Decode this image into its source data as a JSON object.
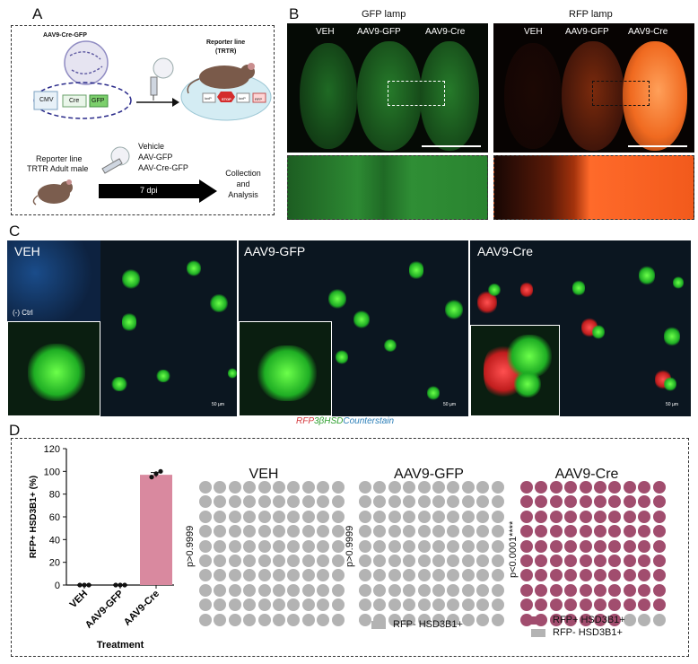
{
  "panels": {
    "a": "A",
    "b": "B",
    "c": "C",
    "d": "D"
  },
  "schematic": {
    "vector": "AAV9-Cre-GFP",
    "reporter_line": "Reporter line",
    "reporter_code": "(TRTR)",
    "cmv": "CMV",
    "cre": "Cre",
    "gfp": "GFP",
    "loxp1": "loxP",
    "stop": "STOP",
    "loxp2": "loxP",
    "rfp": "RFP",
    "subject_line1": "Reporter line",
    "subject_line2": "TRTR Adult male",
    "treatments": [
      "Vehicle",
      "AAV-GFP",
      "AAV-Cre-GFP"
    ],
    "timeline": "7 dpi",
    "outcome": "Collection\nand\nAnalysis"
  },
  "imaging": {
    "lamp_gfp": "GFP lamp",
    "lamp_rfp": "RFP lamp",
    "groups": [
      "VEH",
      "AAV9-GFP",
      "AAV9-Cre"
    ]
  },
  "micrographs": {
    "titles": [
      "VEH",
      "AAV9-GFP",
      "AAV9-Cre"
    ],
    "neg_ctrl": "(-) Ctrl",
    "scale": "50 µm",
    "stain_rfp": "RFP",
    "stain_hsd": "3βHSD",
    "stain_counter": "Counterstain",
    "colors": {
      "rfp": "#d4383d",
      "hsd": "#2ea02e",
      "counter": "#2c7fb8"
    }
  },
  "chart_data": {
    "type": "bar",
    "categories": [
      "VEH",
      "AAV9-GFP",
      "AAV9-Cre"
    ],
    "values": [
      0,
      0,
      97
    ],
    "points": [
      [
        0,
        0,
        0
      ],
      [
        0,
        0,
        0
      ],
      [
        95,
        98,
        100
      ]
    ],
    "error": [
      0,
      0,
      2
    ],
    "ylabel": "RFP+ HSD3B1+ (%)",
    "xlabel": "Treatment",
    "ylim": [
      0,
      120
    ],
    "yticks": [
      0,
      20,
      40,
      60,
      80,
      100,
      120
    ],
    "bar_color": "#d9899f"
  },
  "waffles": [
    {
      "title": "VEH",
      "pvalue": "p>0.9999",
      "positive": 0,
      "total": 100
    },
    {
      "title": "AAV9-GFP",
      "pvalue": "p>0.9999",
      "positive": 0,
      "total": 100
    },
    {
      "title": "AAV9-Cre",
      "pvalue": "p<0.0001****",
      "positive": 97,
      "total": 100
    }
  ],
  "waffle_colors": {
    "positive": "#a14d6e",
    "negative": "#b3b3b3"
  },
  "legends": {
    "neg_only": "RFP- HSD3B1+",
    "pos": "RFP+ HSD3B1+",
    "neg": "RFP- HSD3B1+"
  }
}
